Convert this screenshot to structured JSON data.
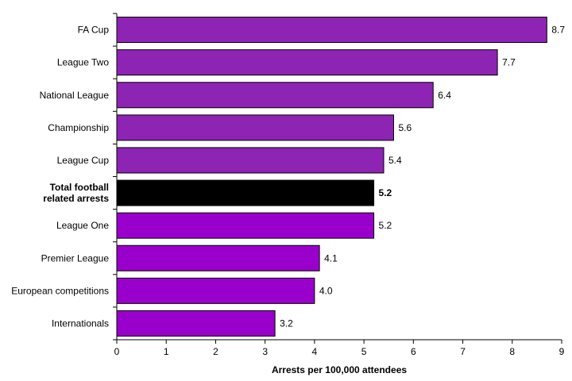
{
  "chart_data": {
    "type": "bar",
    "orientation": "horizontal",
    "categories": [
      [
        "FA Cup"
      ],
      [
        "League Two"
      ],
      [
        "National League"
      ],
      [
        "Championship"
      ],
      [
        "League Cup"
      ],
      [
        "Total football",
        "related arrests"
      ],
      [
        "League One"
      ],
      [
        "Premier League"
      ],
      [
        "European competitions"
      ],
      [
        "Internationals"
      ]
    ],
    "values": [
      8.7,
      7.7,
      6.4,
      5.6,
      5.4,
      5.2,
      5.2,
      4.1,
      4.0,
      3.2
    ],
    "value_labels": [
      "8.7",
      "7.7",
      "6.4",
      "5.6",
      "5.4",
      "5.2",
      "5.2",
      "4.1",
      "4.0",
      "3.2"
    ],
    "highlight_index": 5,
    "xlabel": "Arrests per 100,000 attendees",
    "ylabel": "",
    "title": "",
    "xlim": [
      0,
      9
    ],
    "xticks": [
      "0",
      "1",
      "2",
      "3",
      "4",
      "5",
      "6",
      "7",
      "8",
      "9"
    ],
    "grid": false,
    "colors": {
      "bar_upper": "#8E24B4",
      "bar_lower": "#9A00CC",
      "highlight": "#000000",
      "bar_outline": "#000000"
    }
  }
}
